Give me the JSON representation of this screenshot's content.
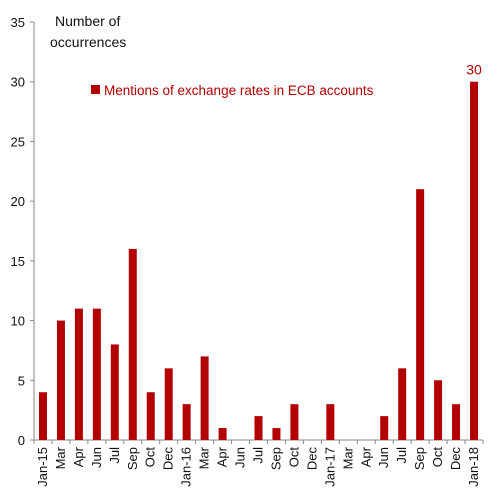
{
  "colors": {
    "bar": "#b20000",
    "axis": "#888888",
    "text": "#111111"
  },
  "chart_data": {
    "type": "bar",
    "ylabel_lines": [
      "Number of",
      "occurrences"
    ],
    "ylim": [
      0,
      35
    ],
    "yticks": [
      0,
      5,
      10,
      15,
      20,
      25,
      30,
      35
    ],
    "grid": false,
    "legend": {
      "position": "top-left",
      "entries": [
        "Mentions of exchange rates in ECB accounts"
      ]
    },
    "series": [
      {
        "name": "Mentions of exchange rates in ECB accounts",
        "values": [
          4,
          10,
          11,
          11,
          8,
          16,
          4,
          6,
          3,
          7,
          1,
          0,
          2,
          1,
          3,
          0,
          3,
          0,
          0,
          2,
          6,
          21,
          5,
          3,
          30
        ]
      }
    ],
    "categories": [
      "Jan-15",
      "Mar",
      "Apr",
      "Jun",
      "Jul",
      "Sep",
      "Oct",
      "Dec",
      "Jan-16",
      "Mar",
      "Apr",
      "Jun",
      "Jul",
      "Sep",
      "Oct",
      "Dec",
      "Jan-17",
      "Mar",
      "Apr",
      "Jun",
      "Jul",
      "Sep",
      "Oct",
      "Dec",
      "Jan-18"
    ],
    "data_labels": [
      {
        "index": 24,
        "text": "30"
      }
    ]
  }
}
